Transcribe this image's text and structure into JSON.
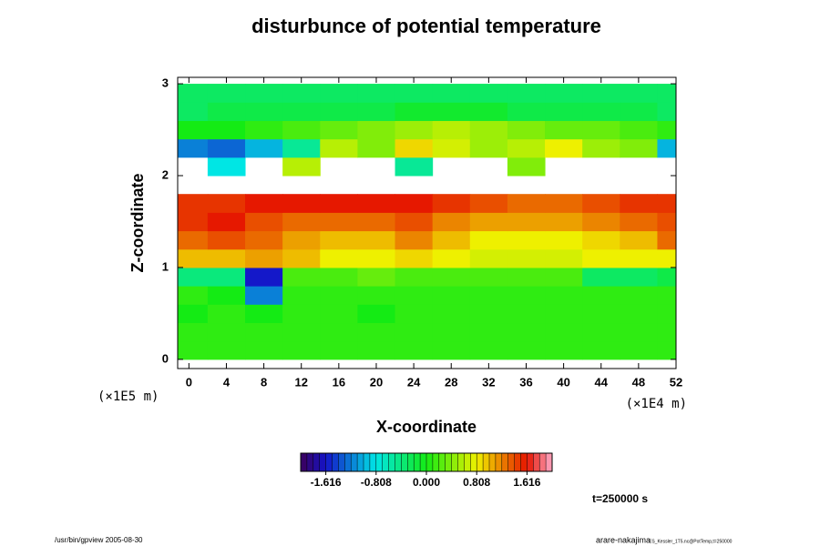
{
  "chart_data": {
    "type": "heatmap",
    "title": "disturbunce of potential temperature",
    "x_label": "X-coordinate",
    "y_label": "Z-coordinate",
    "x_unit": "(×1E4 m)",
    "y_unit": "(×1E5 m)",
    "time_label": "t=250000 s",
    "footer_left": "/usr/bin/gpview 2005-08-30",
    "footer_right": "arare-nakajima",
    "footer_right_small": "ES_Kessler_1T5.nc@PotTemp,t=250000",
    "xlim": [
      -1.2,
      52
    ],
    "ylim": [
      -0.1,
      3.07
    ],
    "xticks": [
      0,
      4,
      8,
      12,
      16,
      20,
      24,
      28,
      32,
      36,
      40,
      44,
      48,
      52
    ],
    "yticks": [
      0,
      1,
      2,
      3
    ],
    "x": [
      0,
      4,
      8,
      12,
      16,
      20,
      24,
      28,
      32,
      36,
      40,
      44,
      48,
      52
    ],
    "y": [
      0.1,
      0.3,
      0.5,
      0.7,
      0.9,
      1.1,
      1.3,
      1.5,
      1.7,
      1.9,
      2.1,
      2.3,
      2.5,
      2.7,
      2.9
    ],
    "values": [
      [
        0.1,
        0.1,
        0.1,
        0.1,
        0.1,
        0.1,
        0.1,
        0.1,
        0.1,
        0.1,
        0.1,
        0.1,
        0.1,
        0.1
      ],
      [
        0.1,
        0.1,
        0.1,
        0.1,
        0.1,
        0.1,
        0.1,
        0.1,
        0.1,
        0.1,
        0.1,
        0.1,
        0.1,
        0.1
      ],
      [
        0.0,
        0.1,
        0.0,
        0.1,
        0.1,
        0.0,
        0.1,
        0.1,
        0.1,
        0.1,
        0.1,
        0.1,
        0.1,
        0.1
      ],
      [
        0.1,
        0.0,
        -1.2,
        0.1,
        0.1,
        0.1,
        0.1,
        0.1,
        0.1,
        0.1,
        0.1,
        0.1,
        0.1,
        0.1
      ],
      [
        -0.4,
        -0.4,
        -1.6,
        0.2,
        0.2,
        0.3,
        0.2,
        0.2,
        0.2,
        0.2,
        0.2,
        -0.3,
        -0.3,
        -0.2
      ],
      [
        1.0,
        1.0,
        1.1,
        1.0,
        0.8,
        0.8,
        0.9,
        0.8,
        0.7,
        0.7,
        0.7,
        0.8,
        0.8,
        0.8
      ],
      [
        1.3,
        1.4,
        1.3,
        1.1,
        1.0,
        1.0,
        1.2,
        1.0,
        0.8,
        0.8,
        0.8,
        0.9,
        1.0,
        1.3
      ],
      [
        1.5,
        1.6,
        1.4,
        1.3,
        1.3,
        1.3,
        1.4,
        1.2,
        1.1,
        1.1,
        1.1,
        1.2,
        1.3,
        1.4
      ],
      [
        1.5,
        1.5,
        1.6,
        1.6,
        1.6,
        1.6,
        1.6,
        1.5,
        1.4,
        1.3,
        1.3,
        1.4,
        1.5,
        1.5
      ],
      [
        null,
        null,
        null,
        null,
        null,
        null,
        null,
        null,
        null,
        null,
        null,
        null,
        null,
        null
      ],
      [
        null,
        -0.8,
        null,
        0.6,
        null,
        null,
        -0.5,
        null,
        null,
        0.4,
        null,
        null,
        null,
        null
      ],
      [
        -1.2,
        -1.3,
        -1.0,
        -0.5,
        0.6,
        0.4,
        0.9,
        0.7,
        0.5,
        0.6,
        0.8,
        0.5,
        0.4,
        -1.0
      ],
      [
        0.0,
        0.0,
        0.1,
        0.2,
        0.3,
        0.4,
        0.5,
        0.6,
        0.5,
        0.4,
        0.3,
        0.3,
        0.2,
        0.1
      ],
      [
        -0.3,
        -0.2,
        -0.2,
        -0.2,
        -0.2,
        -0.2,
        -0.1,
        -0.1,
        -0.1,
        -0.2,
        -0.2,
        -0.2,
        -0.2,
        -0.3
      ],
      [
        -0.3,
        -0.3,
        -0.3,
        -0.3,
        -0.3,
        -0.3,
        -0.3,
        -0.3,
        -0.3,
        -0.3,
        -0.3,
        -0.3,
        -0.3,
        -0.3
      ]
    ],
    "clim": [
      -2.02,
      2.02
    ],
    "cticks": [
      -1.616,
      -0.808,
      {
        "value": 0,
        "label": "0.000"
      },
      0.808,
      1.616
    ]
  }
}
